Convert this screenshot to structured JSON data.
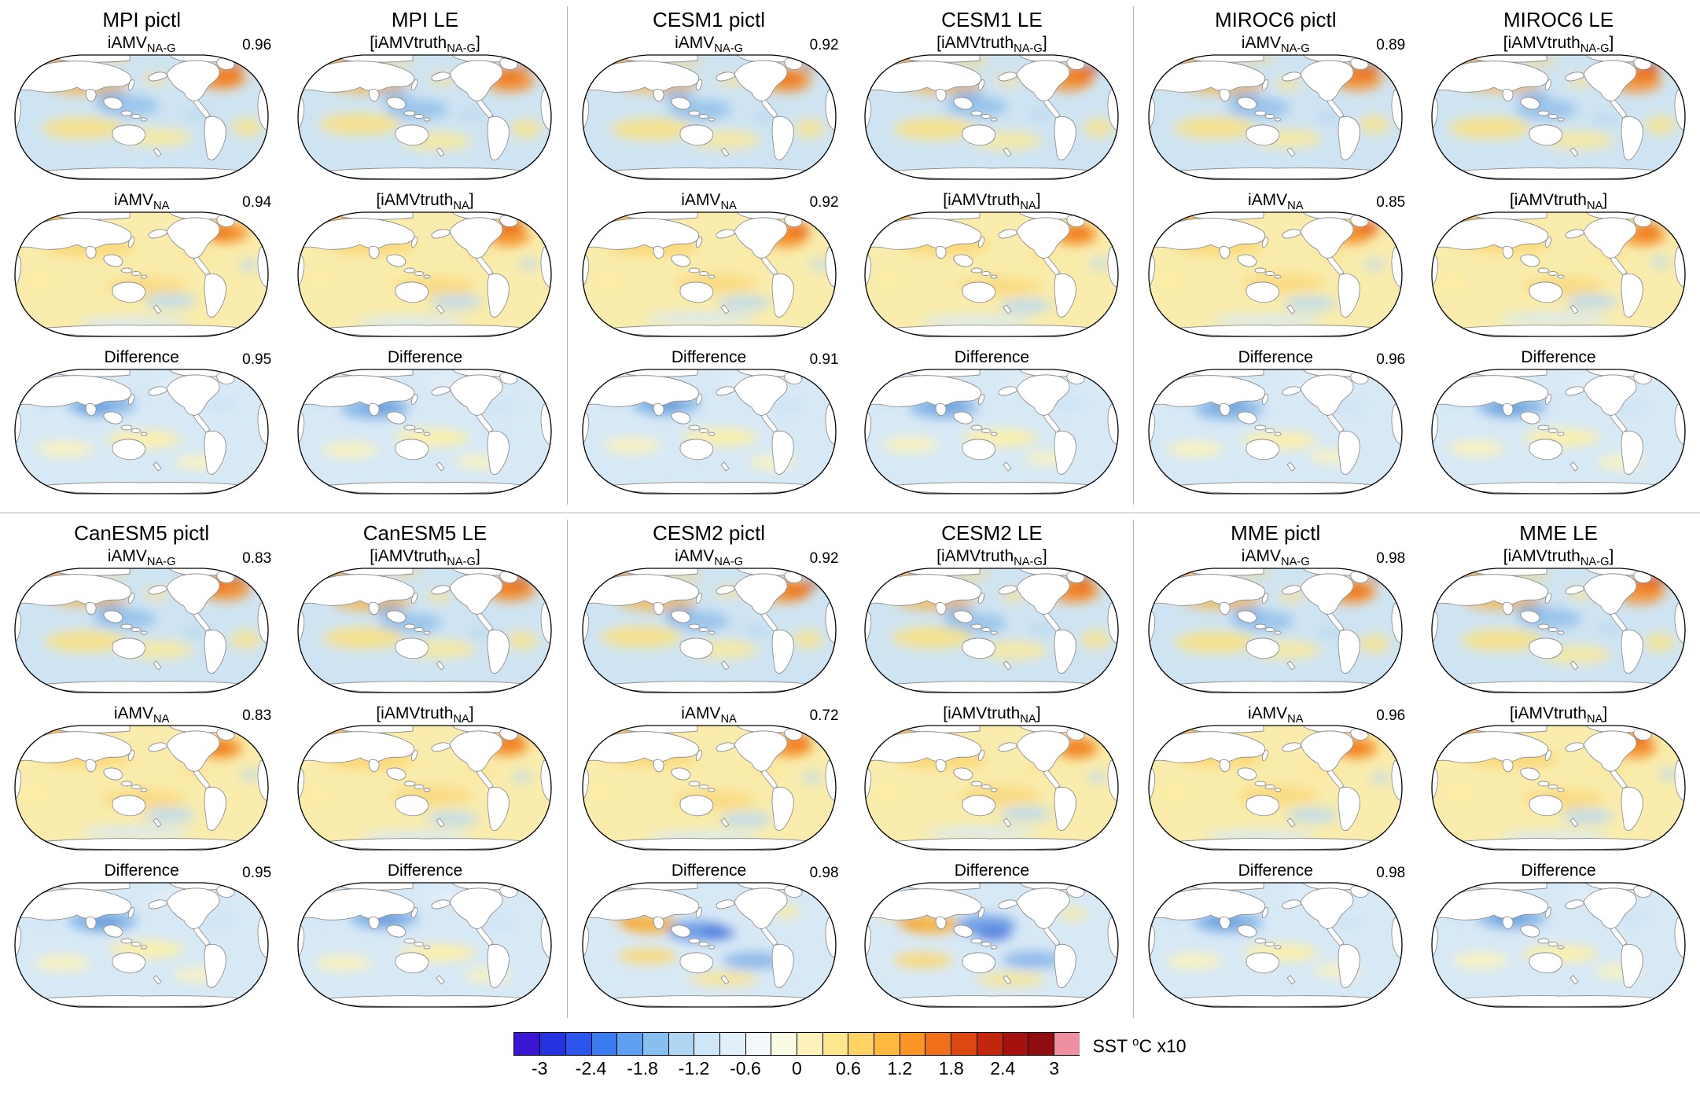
{
  "blocks": [
    {
      "groups": [
        {
          "columns": [
            {
              "title": "MPI pictl",
              "panels": [
                {
                  "label_pre": "iAMV",
                  "label_sub": "NA-G",
                  "label_post": "",
                  "corr": "0.96",
                  "pattern": "nag"
                },
                {
                  "label_pre": "iAMV",
                  "label_sub": "NA",
                  "label_post": "",
                  "corr": "0.94",
                  "pattern": "na"
                },
                {
                  "label_pre": "Difference",
                  "label_sub": "",
                  "label_post": "",
                  "corr": "0.95",
                  "pattern": "diff"
                }
              ]
            },
            {
              "title": "MPI LE",
              "panels": [
                {
                  "label_pre": "[iAMVtruth",
                  "label_sub": "NA-G",
                  "label_post": "]",
                  "corr": "",
                  "pattern": "nag"
                },
                {
                  "label_pre": "[iAMVtruth",
                  "label_sub": "NA",
                  "label_post": "]",
                  "corr": "",
                  "pattern": "na"
                },
                {
                  "label_pre": "Difference",
                  "label_sub": "",
                  "label_post": "",
                  "corr": "",
                  "pattern": "diff"
                }
              ]
            }
          ]
        },
        {
          "columns": [
            {
              "title": "CESM1 pictl",
              "panels": [
                {
                  "label_pre": "iAMV",
                  "label_sub": "NA-G",
                  "label_post": "",
                  "corr": "0.92",
                  "pattern": "nag"
                },
                {
                  "label_pre": "iAMV",
                  "label_sub": "NA",
                  "label_post": "",
                  "corr": "0.92",
                  "pattern": "na"
                },
                {
                  "label_pre": "Difference",
                  "label_sub": "",
                  "label_post": "",
                  "corr": "0.91",
                  "pattern": "diff"
                }
              ]
            },
            {
              "title": "CESM1 LE",
              "panels": [
                {
                  "label_pre": "[iAMVtruth",
                  "label_sub": "NA-G",
                  "label_post": "]",
                  "corr": "",
                  "pattern": "nag"
                },
                {
                  "label_pre": "[iAMVtruth",
                  "label_sub": "NA",
                  "label_post": "]",
                  "corr": "",
                  "pattern": "na"
                },
                {
                  "label_pre": "Difference",
                  "label_sub": "",
                  "label_post": "",
                  "corr": "",
                  "pattern": "diff"
                }
              ]
            }
          ]
        },
        {
          "columns": [
            {
              "title": "MIROC6 pictl",
              "panels": [
                {
                  "label_pre": "iAMV",
                  "label_sub": "NA-G",
                  "label_post": "",
                  "corr": "0.89",
                  "pattern": "nag"
                },
                {
                  "label_pre": "iAMV",
                  "label_sub": "NA",
                  "label_post": "",
                  "corr": "0.85",
                  "pattern": "na"
                },
                {
                  "label_pre": "Difference",
                  "label_sub": "",
                  "label_post": "",
                  "corr": "0.96",
                  "pattern": "diff"
                }
              ]
            },
            {
              "title": "MIROC6 LE",
              "panels": [
                {
                  "label_pre": "[iAMVtruth",
                  "label_sub": "NA-G",
                  "label_post": "]",
                  "corr": "",
                  "pattern": "nag"
                },
                {
                  "label_pre": "[iAMVtruth",
                  "label_sub": "NA",
                  "label_post": "]",
                  "corr": "",
                  "pattern": "na"
                },
                {
                  "label_pre": "Difference",
                  "label_sub": "",
                  "label_post": "",
                  "corr": "",
                  "pattern": "diff"
                }
              ]
            }
          ]
        }
      ]
    },
    {
      "groups": [
        {
          "columns": [
            {
              "title": "CanESM5 pictl",
              "panels": [
                {
                  "label_pre": "iAMV",
                  "label_sub": "NA-G",
                  "label_post": "",
                  "corr": "0.83",
                  "pattern": "nag"
                },
                {
                  "label_pre": "iAMV",
                  "label_sub": "NA",
                  "label_post": "",
                  "corr": "0.83",
                  "pattern": "na"
                },
                {
                  "label_pre": "Difference",
                  "label_sub": "",
                  "label_post": "",
                  "corr": "0.95",
                  "pattern": "diff"
                }
              ]
            },
            {
              "title": "CanESM5 LE",
              "panels": [
                {
                  "label_pre": "[iAMVtruth",
                  "label_sub": "NA-G",
                  "label_post": "]",
                  "corr": "",
                  "pattern": "nag"
                },
                {
                  "label_pre": "[iAMVtruth",
                  "label_sub": "NA",
                  "label_post": "]",
                  "corr": "",
                  "pattern": "na"
                },
                {
                  "label_pre": "Difference",
                  "label_sub": "",
                  "label_post": "",
                  "corr": "",
                  "pattern": "diff"
                }
              ]
            }
          ]
        },
        {
          "columns": [
            {
              "title": "CESM2 pictl",
              "panels": [
                {
                  "label_pre": "iAMV",
                  "label_sub": "NA-G",
                  "label_post": "",
                  "corr": "0.92",
                  "pattern": "nag"
                },
                {
                  "label_pre": "iAMV",
                  "label_sub": "NA",
                  "label_post": "",
                  "corr": "0.72",
                  "pattern": "na"
                },
                {
                  "label_pre": "Difference",
                  "label_sub": "",
                  "label_post": "",
                  "corr": "0.98",
                  "pattern": "diffs"
                }
              ]
            },
            {
              "title": "CESM2 LE",
              "panels": [
                {
                  "label_pre": "[iAMVtruth",
                  "label_sub": "NA-G",
                  "label_post": "]",
                  "corr": "",
                  "pattern": "nag"
                },
                {
                  "label_pre": "[iAMVtruth",
                  "label_sub": "NA",
                  "label_post": "]",
                  "corr": "",
                  "pattern": "na"
                },
                {
                  "label_pre": "Difference",
                  "label_sub": "",
                  "label_post": "",
                  "corr": "",
                  "pattern": "diffs"
                }
              ]
            }
          ]
        },
        {
          "columns": [
            {
              "title": "MME pictl",
              "panels": [
                {
                  "label_pre": "iAMV",
                  "label_sub": "NA-G",
                  "label_post": "",
                  "corr": "0.98",
                  "pattern": "nag"
                },
                {
                  "label_pre": "iAMV",
                  "label_sub": "NA",
                  "label_post": "",
                  "corr": "0.96",
                  "pattern": "na"
                },
                {
                  "label_pre": "Difference",
                  "label_sub": "",
                  "label_post": "",
                  "corr": "0.98",
                  "pattern": "diff"
                }
              ]
            },
            {
              "title": "MME LE",
              "panels": [
                {
                  "label_pre": "[iAMVtruth",
                  "label_sub": "NA-G",
                  "label_post": "]",
                  "corr": "",
                  "pattern": "nag"
                },
                {
                  "label_pre": "[iAMVtruth",
                  "label_sub": "NA",
                  "label_post": "]",
                  "corr": "",
                  "pattern": "na"
                },
                {
                  "label_pre": "Difference",
                  "label_sub": "",
                  "label_post": "",
                  "corr": "",
                  "pattern": "diff"
                }
              ]
            }
          ]
        }
      ]
    }
  ],
  "colorbar": {
    "ticks": [
      "-3",
      "-2.4",
      "-1.8",
      "-1.2",
      "-0.6",
      "0",
      "0.6",
      "1.2",
      "1.8",
      "2.4",
      "3"
    ],
    "segment_colors": [
      "#3a16d2",
      "#2433e0",
      "#2b55ec",
      "#3b7bf0",
      "#5ea0f2",
      "#87c0f0",
      "#aed6f2",
      "#cfe6f6",
      "#e2eff9",
      "#f2f8fc",
      "#fbfae3",
      "#fdf2bb",
      "#fde68e",
      "#fdd363",
      "#fdb83f",
      "#fb9626",
      "#f06f19",
      "#dc4811",
      "#c2270e",
      "#a5120d",
      "#8f0c11",
      "#ee8fa1"
    ],
    "label_pre": "SST ",
    "label_sup": "o",
    "label_post": "C x10"
  },
  "map_colors": {
    "ocean_cool": "#d8e9f6",
    "ocean_warm": "#f9ecac",
    "land": "#ffffff",
    "coast": "#8f8f8f",
    "outline": "#000000",
    "atlantic_warm_core": "#d92a10",
    "atlantic_warm_halo": "#f78c1e",
    "divider": "#b5b5b5"
  }
}
